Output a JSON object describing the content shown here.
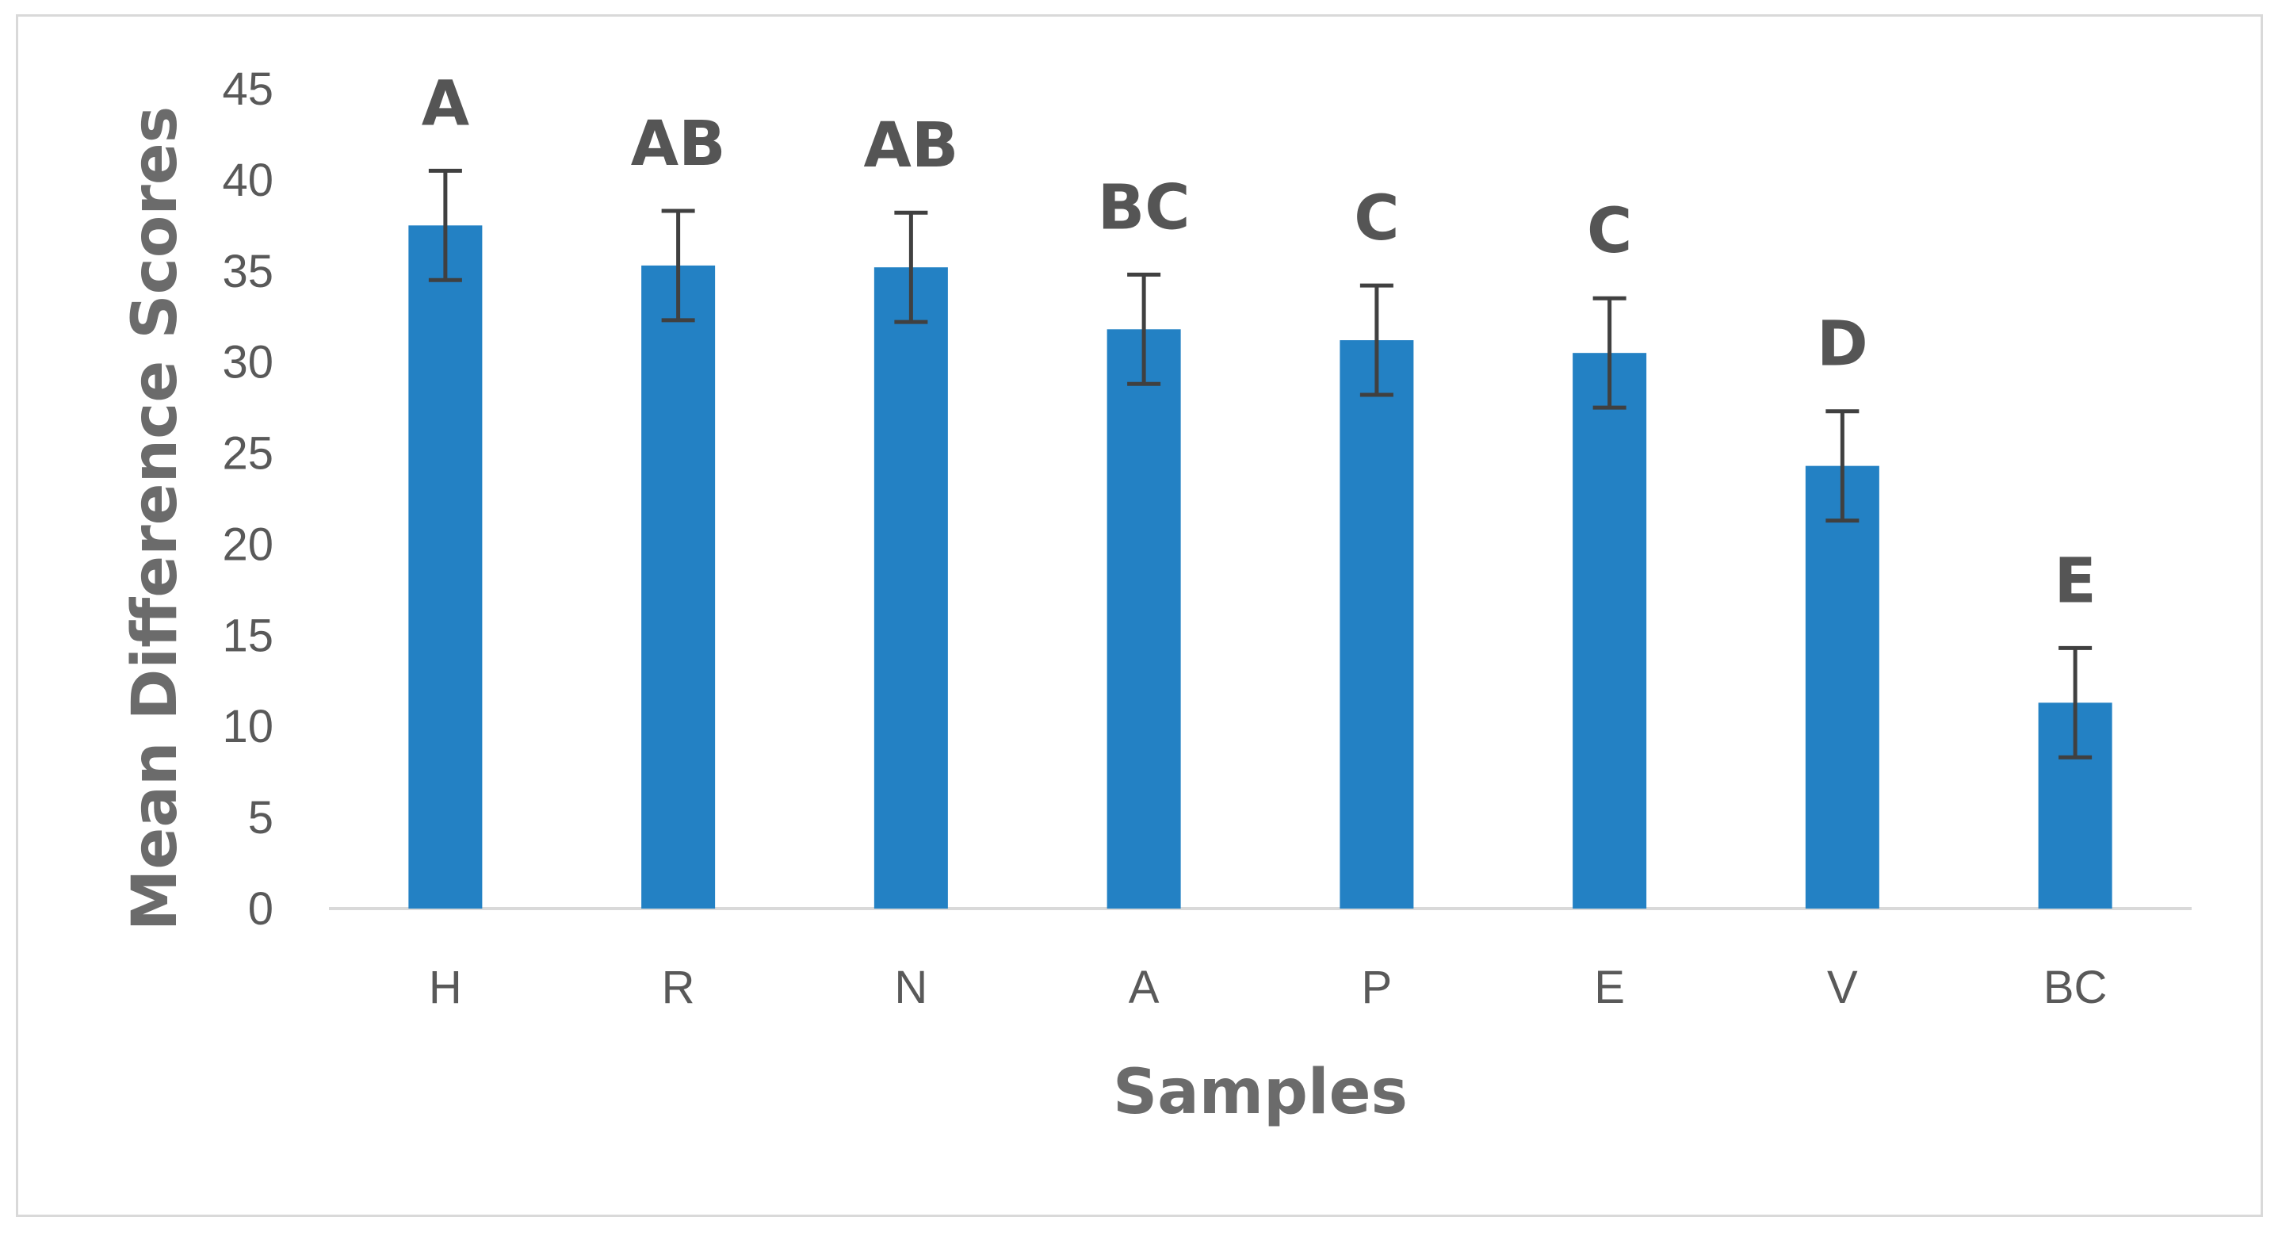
{
  "chart_data": {
    "type": "bar",
    "categories": [
      "H",
      "R",
      "N",
      "A",
      "P",
      "E",
      "V",
      "BC"
    ],
    "values": [
      37.5,
      35.3,
      35.2,
      31.8,
      31.2,
      30.5,
      24.3,
      11.3
    ],
    "error": [
      3.0,
      3.0,
      3.0,
      3.0,
      3.0,
      3.0,
      3.0,
      3.0
    ],
    "group_letters": [
      "A",
      "AB",
      "AB",
      "BC",
      "C",
      "C",
      "D",
      "E"
    ],
    "title": "",
    "xlabel": "Samples",
    "ylabel": "Mean Difference Scores",
    "ylim": [
      0,
      45
    ],
    "yticks": [
      0,
      5,
      10,
      15,
      20,
      25,
      30,
      35,
      40,
      45
    ],
    "grid": false,
    "legend": "none",
    "colors": {
      "bar": "#2381c4",
      "error_bar": "#404040",
      "axis": "#d9d9d9",
      "text": "#595959"
    }
  }
}
